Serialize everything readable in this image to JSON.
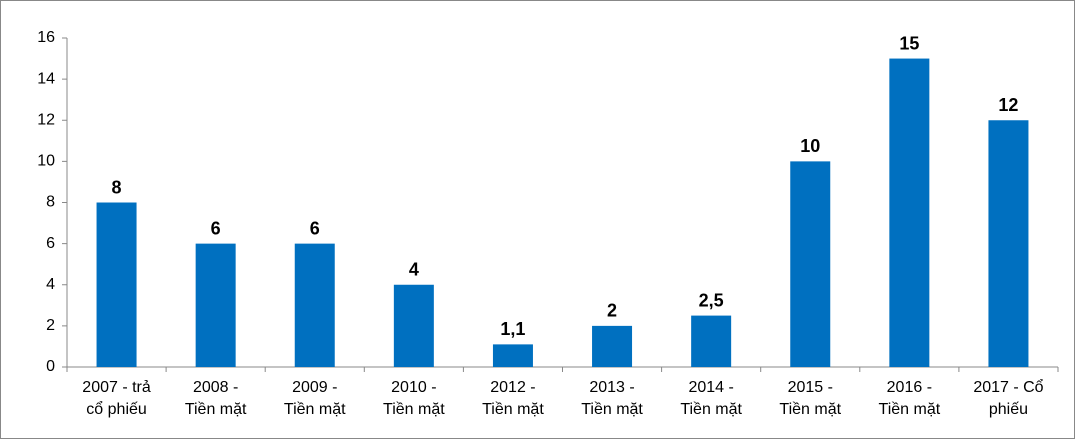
{
  "chart_data": {
    "type": "bar",
    "categories": [
      [
        "2007 - trả",
        "cổ phiếu"
      ],
      [
        "2008 -",
        "Tiền mặt"
      ],
      [
        "2009 -",
        "Tiền mặt"
      ],
      [
        "2010 -",
        "Tiền mặt"
      ],
      [
        "2012 -",
        "Tiền mặt"
      ],
      [
        "2013 -",
        "Tiền mặt"
      ],
      [
        "2014 -",
        "Tiền mặt"
      ],
      [
        "2015 -",
        "Tiền mặt"
      ],
      [
        "2016 -",
        "Tiền mặt"
      ],
      [
        "2017 - Cổ",
        "phiếu"
      ]
    ],
    "values": [
      8,
      6,
      6,
      4,
      1.1,
      2,
      2.5,
      10,
      15,
      12
    ],
    "value_labels": [
      "8",
      "6",
      "6",
      "4",
      "1,1",
      "2",
      "2,5",
      "10",
      "15",
      "12"
    ],
    "color": "#0070c0",
    "ylim": [
      0,
      16
    ],
    "yticks": [
      0,
      2,
      4,
      6,
      8,
      10,
      12,
      14,
      16
    ],
    "grid": false
  }
}
